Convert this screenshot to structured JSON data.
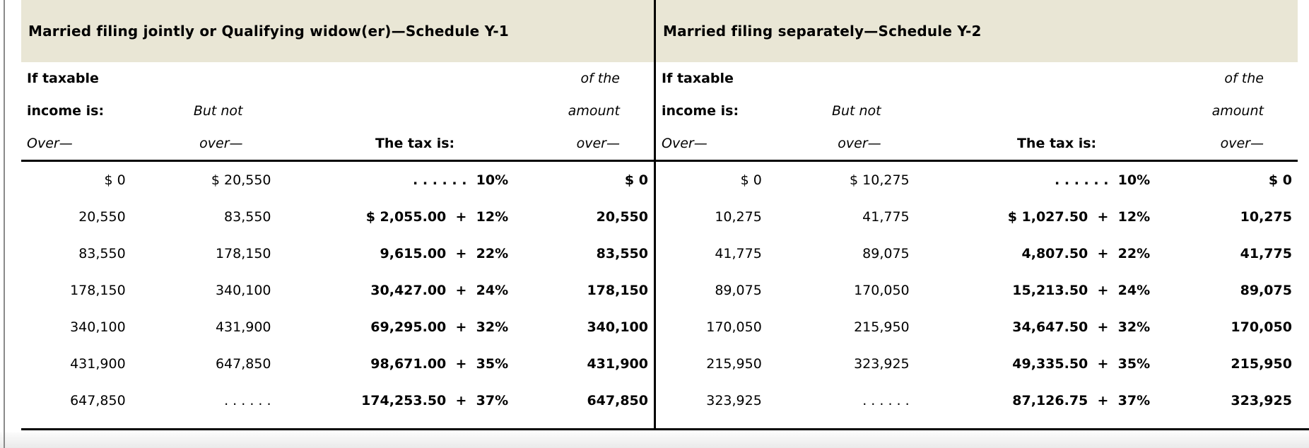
{
  "document": {
    "colors": {
      "band_background": "#e9e6d5",
      "divider": "#000000",
      "edge_rule": "#8a8a8a",
      "text": "#000000"
    },
    "schedules": [
      {
        "title": "Married filing jointly or Qualifying widow(er)—Schedule Y-1",
        "header": {
          "if_taxable": "If taxable",
          "income_is": "income is:",
          "over": "Over—",
          "but_not": "But not",
          "but_not_over": "over—",
          "tax_is": "The tax is:",
          "of_the": "of the",
          "amount": "amount",
          "amount_over": "over—"
        },
        "rows": [
          {
            "over": "$ 0",
            "but_not_over": "$ 20,550",
            "tax": ". . . . . .  10%",
            "amount_over": "$ 0"
          },
          {
            "over": "20,550",
            "but_not_over": "83,550",
            "tax": "$ 2,055.00  +  12%",
            "amount_over": "20,550"
          },
          {
            "over": "83,550",
            "but_not_over": "178,150",
            "tax": "9,615.00  +  22%",
            "amount_over": "83,550"
          },
          {
            "over": "178,150",
            "but_not_over": "340,100",
            "tax": "30,427.00  +  24%",
            "amount_over": "178,150"
          },
          {
            "over": "340,100",
            "but_not_over": "431,900",
            "tax": "69,295.00  +  32%",
            "amount_over": "340,100"
          },
          {
            "over": "431,900",
            "but_not_over": "647,850",
            "tax": "98,671.00  +  35%",
            "amount_over": "431,900"
          },
          {
            "over": "647,850",
            "but_not_over": ". . . . . .",
            "tax": "174,253.50  +  37%",
            "amount_over": "647,850"
          }
        ]
      },
      {
        "title": "Married filing separately—Schedule Y-2",
        "header": {
          "if_taxable": "If taxable",
          "income_is": "income is:",
          "over": "Over—",
          "but_not": "But not",
          "but_not_over": "over—",
          "tax_is": "The tax is:",
          "of_the": "of the",
          "amount": "amount",
          "amount_over": "over—"
        },
        "rows": [
          {
            "over": "$ 0",
            "but_not_over": "$ 10,275",
            "tax": ". . . . . .  10%",
            "amount_over": "$ 0"
          },
          {
            "over": "10,275",
            "but_not_over": "41,775",
            "tax": "$ 1,027.50  +  12%",
            "amount_over": "10,275"
          },
          {
            "over": "41,775",
            "but_not_over": "89,075",
            "tax": "4,807.50  +  22%",
            "amount_over": "41,775"
          },
          {
            "over": "89,075",
            "but_not_over": "170,050",
            "tax": "15,213.50  +  24%",
            "amount_over": "89,075"
          },
          {
            "over": "170,050",
            "but_not_over": "215,950",
            "tax": "34,647.50  +  32%",
            "amount_over": "170,050"
          },
          {
            "over": "215,950",
            "but_not_over": "323,925",
            "tax": "49,335.50  +  35%",
            "amount_over": "215,950"
          },
          {
            "over": "323,925",
            "but_not_over": ". . . . . .",
            "tax": "87,126.75  +  37%",
            "amount_over": "323,925"
          }
        ]
      }
    ]
  }
}
